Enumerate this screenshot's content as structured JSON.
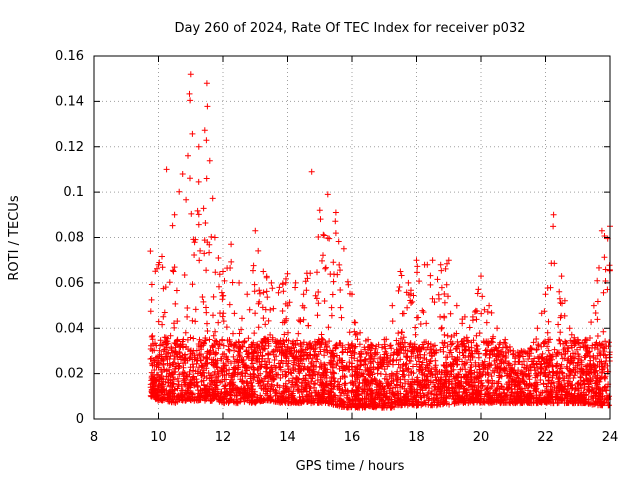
{
  "chart_data": {
    "type": "scatter",
    "title": "Day 260 of 2024, Rate Of TEC Index for receiver p032",
    "xlabel": "GPS time / hours",
    "ylabel": "ROTI / TECUs",
    "xlim": [
      8,
      24
    ],
    "ylim": [
      0,
      0.16
    ],
    "x_ticks": [
      "8",
      "10",
      "12",
      "14",
      "16",
      "18",
      "20",
      "22",
      "24"
    ],
    "y_ticks": [
      "0",
      "0.02",
      "0.04",
      "0.06",
      "0.08",
      "0.1",
      "0.12",
      "0.14",
      "0.16"
    ],
    "grid": true,
    "marker": "plus",
    "marker_color": "#ff0000",
    "data_start_hour": 9.75,
    "data_end_hour": 24,
    "series": [
      {
        "name": "ROTI",
        "points_note": "dense point cloud sampled from these envelope values",
        "envelope_x": [
          9.75,
          10,
          10.25,
          10.5,
          10.75,
          11,
          11.25,
          11.5,
          11.75,
          12,
          12.25,
          12.5,
          12.75,
          13,
          13.25,
          13.5,
          13.75,
          14,
          14.25,
          14.5,
          14.75,
          15,
          15.25,
          15.5,
          15.75,
          16,
          16.25,
          16.5,
          16.75,
          17,
          17.25,
          17.5,
          17.75,
          18,
          18.25,
          18.5,
          18.75,
          19,
          19.25,
          19.5,
          19.75,
          20,
          20.25,
          20.5,
          20.75,
          21,
          21.25,
          21.5,
          21.75,
          22,
          22.25,
          22.5,
          22.75,
          23,
          23.25,
          23.5,
          23.75,
          24
        ],
        "envelope_ymax": [
          0.074,
          0.068,
          0.11,
          0.09,
          0.108,
          0.152,
          0.12,
          0.148,
          0.08,
          0.065,
          0.077,
          0.06,
          0.055,
          0.083,
          0.065,
          0.06,
          0.058,
          0.064,
          0.06,
          0.055,
          0.109,
          0.092,
          0.099,
          0.091,
          0.075,
          0.055,
          0.038,
          0.035,
          0.032,
          0.035,
          0.05,
          0.065,
          0.06,
          0.07,
          0.068,
          0.07,
          0.068,
          0.07,
          0.05,
          0.045,
          0.045,
          0.063,
          0.05,
          0.04,
          0.035,
          0.03,
          0.03,
          0.03,
          0.04,
          0.055,
          0.09,
          0.063,
          0.04,
          0.035,
          0.035,
          0.05,
          0.083,
          0.085
        ],
        "envelope_ymin": [
          0.01,
          0.008,
          0.008,
          0.007,
          0.008,
          0.008,
          0.008,
          0.008,
          0.008,
          0.007,
          0.007,
          0.007,
          0.007,
          0.007,
          0.008,
          0.008,
          0.007,
          0.007,
          0.007,
          0.007,
          0.007,
          0.007,
          0.007,
          0.006,
          0.005,
          0.005,
          0.005,
          0.005,
          0.005,
          0.005,
          0.005,
          0.006,
          0.006,
          0.006,
          0.006,
          0.006,
          0.006,
          0.006,
          0.007,
          0.007,
          0.007,
          0.007,
          0.007,
          0.007,
          0.007,
          0.007,
          0.007,
          0.007,
          0.007,
          0.007,
          0.007,
          0.007,
          0.007,
          0.007,
          0.007,
          0.006,
          0.006,
          0.006
        ]
      }
    ]
  }
}
